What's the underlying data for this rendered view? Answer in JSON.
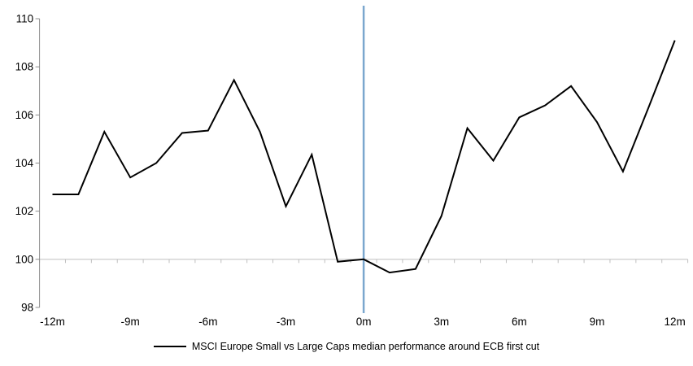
{
  "chart_data": {
    "type": "line",
    "title": "",
    "legend": "MSCI Europe Small vs Large Caps median performance around ECB first cut",
    "xlabel": "",
    "ylabel": "",
    "x": [
      -12,
      -11,
      -10,
      -9,
      -8,
      -7,
      -6,
      -5,
      -4,
      -3,
      -2,
      -1,
      0,
      1,
      2,
      3,
      4,
      5,
      6,
      7,
      8,
      9,
      10,
      11,
      12
    ],
    "series": [
      {
        "name": "MSCI Europe Small vs Large Caps median performance around ECB first cut",
        "values": [
          102.7,
          102.7,
          105.3,
          103.4,
          104.0,
          105.25,
          105.35,
          107.45,
          105.3,
          102.2,
          104.35,
          99.9,
          100.0,
          99.45,
          99.6,
          101.8,
          105.45,
          104.1,
          105.9,
          106.4,
          107.2,
          105.7,
          103.65,
          106.35,
          109.1
        ]
      }
    ],
    "x_tick_months": [
      -12,
      -9,
      -6,
      -3,
      0,
      3,
      6,
      9,
      12
    ],
    "x_tick_labels": [
      "-12m",
      "-9m",
      "-6m",
      "-3m",
      "0m",
      "3m",
      "6m",
      "9m",
      "12m"
    ],
    "y_ticks": [
      98,
      100,
      102,
      104,
      106,
      108,
      110
    ],
    "ylim": [
      98,
      110
    ],
    "baseline_value": 100,
    "event_line_month": 0,
    "grid": "baseline-only",
    "legend_position": "bottom-center",
    "colors": {
      "series_line": "#000000",
      "event_line": "#7BA7CE",
      "value_axis": "#8C8C8C",
      "category_axis": "#BFBFBF",
      "tick_label": "#000000"
    }
  }
}
